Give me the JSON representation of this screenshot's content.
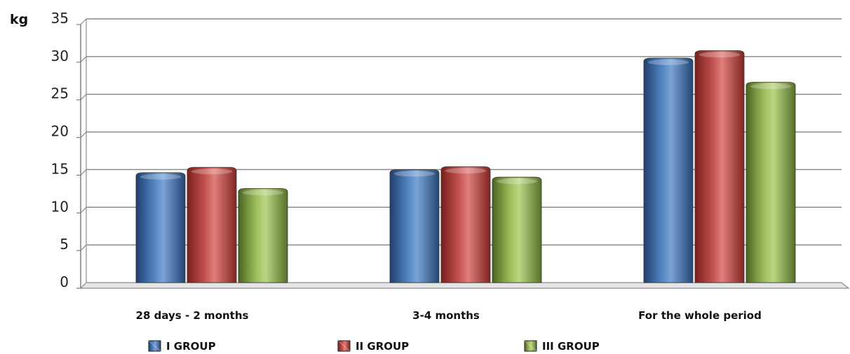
{
  "chart_data": {
    "type": "bar",
    "unit_label": "kg",
    "categories": [
      "28 days - 2 months",
      "3-4 months",
      "For the whole period"
    ],
    "series": [
      {
        "name": "I GROUP",
        "values": [
          14.6,
          15.0,
          29.8
        ],
        "color": "#4f81bd"
      },
      {
        "name": "II GROUP",
        "values": [
          15.3,
          15.4,
          30.8
        ],
        "color": "#c0504d"
      },
      {
        "name": "III GROUP",
        "values": [
          12.5,
          14.0,
          26.6
        ],
        "color": "#9bbb59"
      }
    ],
    "ylim": [
      0,
      35
    ],
    "yticks": [
      0,
      5,
      10,
      15,
      20,
      25,
      30,
      35
    ],
    "grid": true,
    "legend_position": "bottom"
  }
}
